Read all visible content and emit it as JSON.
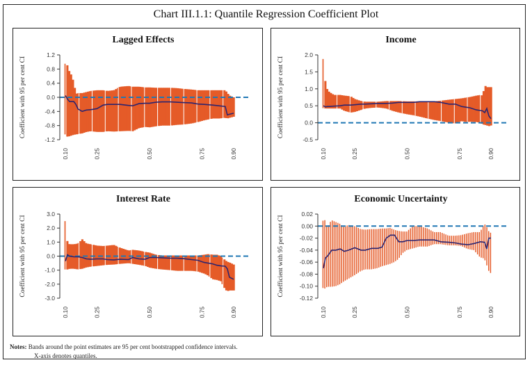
{
  "title": "Chart III.1.1: Quantile Regression Coefficient Plot",
  "notes": {
    "label": "Notes:",
    "line1": "Bands around the point estimates are 95 per cent bootstrapped confidence intervals.",
    "line2": "X-axis denotes quantiles."
  },
  "colors": {
    "band": "#E55B28",
    "line": "#2B2470",
    "zero": "#1F77B4",
    "axis": "#333333"
  },
  "chart_data": [
    {
      "type": "area",
      "title": "Lagged Effects",
      "ylabel": "Coefficient with 95 per cent CI",
      "xlabel": "",
      "xlim": [
        0.1,
        0.9
      ],
      "ylim": [
        -1.2,
        1.2
      ],
      "yticks": [
        "1.2",
        "0.8",
        "0.4",
        "0.0",
        "-0.4",
        "-0.8",
        "-1.2"
      ],
      "ytick_values": [
        1.2,
        0.8,
        0.4,
        0.0,
        -0.4,
        -0.8,
        -1.2
      ],
      "xticks": [
        "0.10",
        "0.25",
        "0.50",
        "0.75",
        "0.90"
      ],
      "xtick_values": [
        0.1,
        0.25,
        0.5,
        0.75,
        0.9
      ],
      "reference_line": 0,
      "x": [
        0.1,
        0.11,
        0.12,
        0.13,
        0.14,
        0.15,
        0.16,
        0.18,
        0.2,
        0.22,
        0.25,
        0.28,
        0.3,
        0.33,
        0.36,
        0.4,
        0.42,
        0.45,
        0.48,
        0.5,
        0.53,
        0.56,
        0.6,
        0.63,
        0.66,
        0.7,
        0.73,
        0.76,
        0.8,
        0.83,
        0.86,
        0.87,
        0.88,
        0.9
      ],
      "estimate": [
        0.05,
        -0.05,
        -0.12,
        -0.12,
        -0.12,
        -0.2,
        -0.33,
        -0.4,
        -0.36,
        -0.35,
        -0.32,
        -0.22,
        -0.2,
        -0.2,
        -0.2,
        -0.23,
        -0.24,
        -0.18,
        -0.17,
        -0.17,
        -0.14,
        -0.13,
        -0.13,
        -0.14,
        -0.15,
        -0.16,
        -0.19,
        -0.2,
        -0.22,
        -0.24,
        -0.26,
        -0.5,
        -0.48,
        -0.45
      ],
      "lower": [
        -1.05,
        -1.12,
        -1.1,
        -1.08,
        -1.06,
        -1.05,
        -1.04,
        -1.02,
        -0.98,
        -0.96,
        -0.98,
        -0.98,
        -0.96,
        -0.97,
        -0.96,
        -0.95,
        -0.96,
        -0.87,
        -0.84,
        -0.85,
        -0.82,
        -0.8,
        -0.8,
        -0.78,
        -0.77,
        -0.74,
        -0.7,
        -0.65,
        -0.6,
        -0.6,
        -0.58,
        -0.6,
        -0.58,
        -0.55
      ],
      "upper": [
        0.95,
        0.9,
        0.7,
        0.62,
        0.4,
        0.1,
        0.12,
        0.12,
        0.15,
        0.18,
        0.2,
        0.2,
        0.18,
        0.2,
        0.3,
        0.32,
        0.3,
        0.3,
        0.28,
        0.28,
        0.27,
        0.27,
        0.27,
        0.26,
        0.24,
        0.22,
        0.2,
        0.2,
        0.2,
        0.2,
        0.2,
        0.12,
        0.05,
        0.0
      ]
    },
    {
      "type": "area",
      "title": "Income",
      "ylabel": "Coefficient with 95 per cent CI",
      "xlabel": "",
      "xlim": [
        0.1,
        0.9
      ],
      "ylim": [
        -0.5,
        2.0
      ],
      "yticks": [
        "2.0",
        "1.5",
        "1.0",
        "0.5",
        "0.0",
        "-0.5"
      ],
      "ytick_values": [
        2.0,
        1.5,
        1.0,
        0.5,
        0.0,
        -0.5
      ],
      "xticks": [
        "0.10",
        "0.25",
        "0.50",
        "0.75",
        "0.90"
      ],
      "xtick_values": [
        0.1,
        0.25,
        0.5,
        0.75,
        0.9
      ],
      "reference_line": 0,
      "x": [
        0.1,
        0.11,
        0.12,
        0.13,
        0.15,
        0.18,
        0.2,
        0.23,
        0.25,
        0.28,
        0.3,
        0.33,
        0.36,
        0.4,
        0.43,
        0.46,
        0.5,
        0.53,
        0.56,
        0.6,
        0.63,
        0.66,
        0.7,
        0.73,
        0.76,
        0.78,
        0.8,
        0.83,
        0.85,
        0.86,
        0.87,
        0.88,
        0.89,
        0.9
      ],
      "estimate": [
        0.5,
        0.47,
        0.48,
        0.48,
        0.49,
        0.5,
        0.52,
        0.52,
        0.53,
        0.55,
        0.55,
        0.56,
        0.57,
        0.57,
        0.58,
        0.6,
        0.6,
        0.6,
        0.62,
        0.62,
        0.62,
        0.6,
        0.55,
        0.55,
        0.48,
        0.46,
        0.44,
        0.38,
        0.36,
        0.35,
        0.3,
        0.42,
        0.2,
        0.12
      ],
      "lower": [
        0.43,
        0.42,
        0.42,
        0.42,
        0.42,
        0.42,
        0.35,
        0.3,
        0.32,
        0.38,
        0.42,
        0.44,
        0.45,
        0.42,
        0.35,
        0.3,
        0.25,
        0.22,
        0.18,
        0.12,
        0.08,
        0.05,
        0.0,
        -0.02,
        0.05,
        0.02,
        0.03,
        0.02,
        0.0,
        -0.05,
        -0.06,
        -0.08,
        -0.1,
        -0.08
      ],
      "upper": [
        1.88,
        1.15,
        0.95,
        0.9,
        0.82,
        0.82,
        0.8,
        0.78,
        0.7,
        0.64,
        0.62,
        0.62,
        0.62,
        0.64,
        0.64,
        0.64,
        0.63,
        0.63,
        0.63,
        0.63,
        0.63,
        0.65,
        0.68,
        0.7,
        0.72,
        0.74,
        0.76,
        0.8,
        0.82,
        0.8,
        1.1,
        1.05,
        1.05,
        1.05
      ]
    },
    {
      "type": "area",
      "title": "Interest Rate",
      "ylabel": "Coefficient with 95 per cent CI",
      "xlabel": "",
      "xlim": [
        0.1,
        0.9
      ],
      "ylim": [
        -3.0,
        3.0
      ],
      "yticks": [
        "3.0",
        "2.0",
        "1.0",
        "0.0",
        "-1.0",
        "-2.0",
        "-3.0"
      ],
      "ytick_values": [
        3.0,
        2.0,
        1.0,
        0.0,
        -1.0,
        -2.0,
        -3.0
      ],
      "xticks": [
        "0.10",
        "0.25",
        "0.50",
        "0.75",
        "0.90"
      ],
      "xtick_values": [
        0.1,
        0.25,
        0.5,
        0.75,
        0.9
      ],
      "reference_line": 0,
      "x": [
        0.1,
        0.11,
        0.12,
        0.14,
        0.16,
        0.18,
        0.2,
        0.22,
        0.25,
        0.28,
        0.3,
        0.33,
        0.36,
        0.4,
        0.42,
        0.45,
        0.48,
        0.5,
        0.53,
        0.56,
        0.6,
        0.63,
        0.66,
        0.7,
        0.73,
        0.76,
        0.78,
        0.8,
        0.82,
        0.84,
        0.86,
        0.87,
        0.88,
        0.9
      ],
      "estimate": [
        -0.35,
        0.1,
        0.0,
        -0.05,
        -0.05,
        -0.1,
        -0.2,
        -0.22,
        -0.2,
        -0.2,
        -0.25,
        -0.27,
        -0.22,
        -0.25,
        -0.1,
        -0.2,
        -0.22,
        -0.1,
        -0.1,
        -0.12,
        -0.15,
        -0.15,
        -0.18,
        -0.25,
        -0.3,
        -0.45,
        -0.5,
        -0.55,
        -0.65,
        -0.7,
        -0.72,
        -0.9,
        -1.5,
        -1.65
      ],
      "lower": [
        -0.95,
        -0.95,
        -0.9,
        -0.9,
        -0.95,
        -0.9,
        -0.8,
        -0.75,
        -0.7,
        -0.65,
        -0.62,
        -0.6,
        -0.55,
        -0.5,
        -0.55,
        -0.62,
        -0.7,
        -0.82,
        -0.9,
        -0.95,
        -1.0,
        -1.05,
        -1.05,
        -1.05,
        -1.1,
        -1.25,
        -1.4,
        -1.65,
        -1.7,
        -1.8,
        -2.4,
        -2.5,
        -2.45,
        -2.45
      ],
      "upper": [
        2.5,
        0.9,
        0.85,
        0.85,
        0.9,
        1.2,
        0.9,
        0.85,
        0.75,
        0.72,
        0.75,
        0.8,
        0.6,
        0.4,
        0.45,
        0.4,
        0.3,
        0.25,
        0.1,
        0.05,
        0.05,
        0.05,
        0.05,
        0.05,
        0.05,
        0.1,
        0.15,
        0.1,
        0.1,
        0.0,
        -0.3,
        -0.4,
        -0.45,
        -0.6
      ]
    },
    {
      "type": "area",
      "title": "Economic Uncertainty",
      "ylabel": "Coefficient with 95 per cent CI",
      "xlabel": "",
      "xlim": [
        0.1,
        0.9
      ],
      "ylim": [
        -0.12,
        0.02
      ],
      "yticks": [
        "0.02",
        "0.00",
        "-0.02",
        "-0.04",
        "-0.06",
        "-0.08",
        "-0.10",
        "-0.12"
      ],
      "ytick_values": [
        0.02,
        0.0,
        -0.02,
        -0.04,
        -0.06,
        -0.08,
        -0.1,
        -0.12
      ],
      "xticks": [
        "0.10",
        "0.25",
        "0.50",
        "0.75",
        "0.90"
      ],
      "xtick_values": [
        0.1,
        0.25,
        0.5,
        0.75,
        0.9
      ],
      "reference_line": 0,
      "x": [
        0.1,
        0.11,
        0.12,
        0.14,
        0.16,
        0.18,
        0.2,
        0.22,
        0.25,
        0.28,
        0.3,
        0.33,
        0.36,
        0.38,
        0.4,
        0.42,
        0.44,
        0.46,
        0.48,
        0.5,
        0.53,
        0.56,
        0.6,
        0.63,
        0.66,
        0.7,
        0.73,
        0.76,
        0.79,
        0.82,
        0.85,
        0.87,
        0.88,
        0.89,
        0.9
      ],
      "estimate": [
        -0.07,
        -0.053,
        -0.05,
        -0.04,
        -0.04,
        -0.038,
        -0.042,
        -0.04,
        -0.036,
        -0.04,
        -0.04,
        -0.037,
        -0.037,
        -0.035,
        -0.02,
        -0.015,
        -0.015,
        -0.026,
        -0.026,
        -0.024,
        -0.024,
        -0.023,
        -0.023,
        -0.023,
        -0.026,
        -0.027,
        -0.028,
        -0.03,
        -0.031,
        -0.029,
        -0.026,
        -0.027,
        -0.038,
        -0.02,
        -0.02
      ],
      "lower": [
        -0.103,
        -0.104,
        -0.101,
        -0.101,
        -0.1,
        -0.097,
        -0.092,
        -0.088,
        -0.082,
        -0.075,
        -0.072,
        -0.072,
        -0.07,
        -0.067,
        -0.065,
        -0.063,
        -0.06,
        -0.055,
        -0.045,
        -0.04,
        -0.037,
        -0.034,
        -0.034,
        -0.03,
        -0.03,
        -0.032,
        -0.032,
        -0.033,
        -0.038,
        -0.04,
        -0.052,
        -0.054,
        -0.063,
        -0.074,
        -0.078
      ],
      "upper": [
        0.009,
        0.01,
        -0.003,
        0.01,
        0.007,
        0.004,
        -0.002,
        0.002,
        0.0,
        -0.005,
        -0.006,
        -0.005,
        -0.005,
        -0.004,
        -0.004,
        -0.003,
        -0.006,
        -0.008,
        -0.009,
        -0.009,
        0.0,
        0.0,
        -0.004,
        -0.01,
        -0.01,
        -0.016,
        -0.016,
        -0.015,
        -0.012,
        -0.01,
        -0.01,
        0.004,
        0.0,
        -0.008,
        -0.011
      ]
    }
  ]
}
